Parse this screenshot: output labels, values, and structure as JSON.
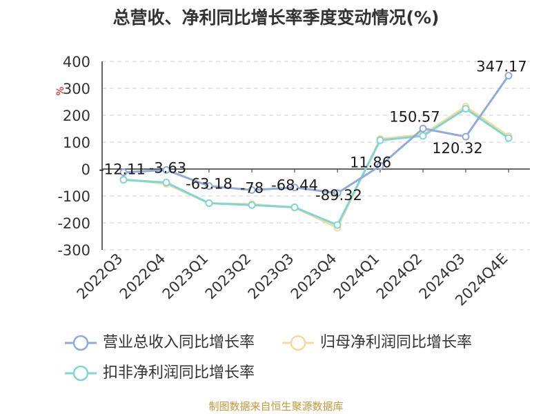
{
  "title": "总营收、净利同比增长率季度变动情况(%)",
  "source": "制图数据来自恒生聚源数据库",
  "chart_data": {
    "type": "line",
    "title": "总营收、净利同比增长率季度变动情况(%)",
    "ylabel": "%",
    "ylim": [
      -300,
      400
    ],
    "yticks": [
      400,
      300,
      200,
      100,
      0,
      -100,
      -200,
      -300
    ],
    "grid": true,
    "legend_position": "bottom",
    "categories": [
      "2022Q3",
      "2022Q4",
      "2023Q1",
      "2023Q2",
      "2023Q3",
      "2023Q4",
      "2024Q1",
      "2024Q2",
      "2024Q3",
      "2024Q4E"
    ],
    "series": [
      {
        "name": "营业总收入同比增长率",
        "color": "#8faadc",
        "values": [
          -12.11,
          -3.63,
          -63.18,
          -78,
          -68.44,
          -89.32,
          11.86,
          150.57,
          120.32,
          347.17
        ],
        "labels": [
          "-12.11",
          "-3.63",
          "-63.18",
          "-78",
          "-68.44",
          "-89.32",
          "11.86",
          "150.57",
          "120.32",
          "347.17"
        ]
      },
      {
        "name": "归母净利润同比增长率",
        "color": "#f7d999",
        "values": [
          -38,
          -55,
          -127,
          -130,
          -143,
          -218,
          112,
          128,
          232,
          122
        ]
      },
      {
        "name": "扣非净利润同比增长率",
        "color": "#7fd6d6",
        "values": [
          -40,
          -50,
          -127,
          -134,
          -142,
          -208,
          107,
          123,
          224,
          115
        ]
      }
    ]
  }
}
